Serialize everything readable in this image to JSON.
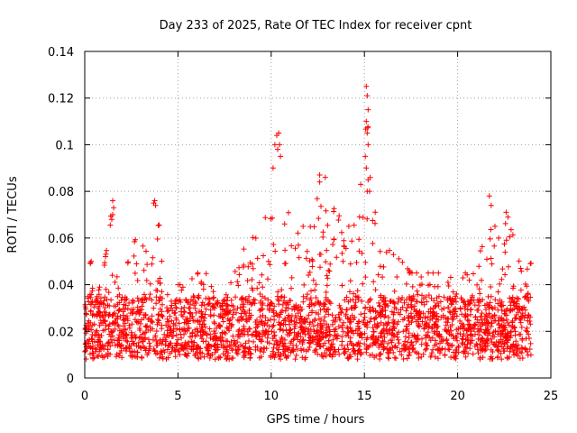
{
  "chart_data": {
    "type": "scatter",
    "title": "Day 233 of 2025, Rate Of TEC Index for receiver cpnt",
    "xlabel": "GPS time / hours",
    "ylabel": "ROTI / TECUs",
    "xlim": [
      0,
      25
    ],
    "ylim": [
      0,
      0.14
    ],
    "xticks": [
      0,
      5,
      10,
      15,
      20,
      25
    ],
    "xtick_labels": [
      "0",
      "5",
      "10",
      "15",
      "20",
      "25"
    ],
    "yticks": [
      0,
      0.02,
      0.04,
      0.06,
      0.08,
      0.1,
      0.12,
      0.14
    ],
    "ytick_labels": [
      "0",
      "0.02",
      "0.04",
      "0.06",
      "0.08",
      "0.1",
      "0.12",
      "0.14"
    ],
    "grid": true,
    "marker": "+",
    "color": "#ff0000",
    "series": [
      {
        "name": "ROTI",
        "x_range": [
          0,
          24
        ],
        "baseline_band": [
          0.008,
          0.035
        ],
        "envelope": [
          [
            0.0,
            0.03
          ],
          [
            0.3,
            0.05
          ],
          [
            0.5,
            0.03
          ],
          [
            1.0,
            0.045
          ],
          [
            1.4,
            0.07
          ],
          [
            1.6,
            0.045
          ],
          [
            2.0,
            0.04
          ],
          [
            2.5,
            0.055
          ],
          [
            3.0,
            0.065
          ],
          [
            3.5,
            0.05
          ],
          [
            3.8,
            0.075
          ],
          [
            4.2,
            0.055
          ],
          [
            4.5,
            0.04
          ],
          [
            5.0,
            0.04
          ],
          [
            5.5,
            0.04
          ],
          [
            6.0,
            0.045
          ],
          [
            6.5,
            0.045
          ],
          [
            7.0,
            0.035
          ],
          [
            7.3,
            0.03
          ],
          [
            7.8,
            0.04
          ],
          [
            8.5,
            0.055
          ],
          [
            9.0,
            0.06
          ],
          [
            9.5,
            0.065
          ],
          [
            10.0,
            0.075
          ],
          [
            10.3,
            0.1
          ],
          [
            10.6,
            0.075
          ],
          [
            11.0,
            0.07
          ],
          [
            11.5,
            0.065
          ],
          [
            12.0,
            0.065
          ],
          [
            12.5,
            0.085
          ],
          [
            13.0,
            0.08
          ],
          [
            13.5,
            0.07
          ],
          [
            14.0,
            0.07
          ],
          [
            14.5,
            0.065
          ],
          [
            14.8,
            0.08
          ],
          [
            15.1,
            0.125
          ],
          [
            15.4,
            0.08
          ],
          [
            15.8,
            0.06
          ],
          [
            16.3,
            0.055
          ],
          [
            17.0,
            0.05
          ],
          [
            17.5,
            0.045
          ],
          [
            18.0,
            0.045
          ],
          [
            18.5,
            0.045
          ],
          [
            19.0,
            0.045
          ],
          [
            19.5,
            0.045
          ],
          [
            20.0,
            0.045
          ],
          [
            20.5,
            0.045
          ],
          [
            21.0,
            0.05
          ],
          [
            21.5,
            0.06
          ],
          [
            21.8,
            0.078
          ],
          [
            22.1,
            0.07
          ],
          [
            22.5,
            0.065
          ],
          [
            22.8,
            0.07
          ],
          [
            23.1,
            0.055
          ],
          [
            23.5,
            0.045
          ],
          [
            24.0,
            0.05
          ]
        ],
        "highlighted_points": [
          [
            0.3,
            0.049
          ],
          [
            0.35,
            0.05
          ],
          [
            1.45,
            0.068
          ],
          [
            1.5,
            0.07
          ],
          [
            1.55,
            0.073
          ],
          [
            1.5,
            0.076
          ],
          [
            3.7,
            0.075
          ],
          [
            3.8,
            0.074
          ],
          [
            3.75,
            0.076
          ],
          [
            10.2,
            0.1
          ],
          [
            10.3,
            0.104
          ],
          [
            10.4,
            0.105
          ],
          [
            10.35,
            0.098
          ],
          [
            10.45,
            0.1
          ],
          [
            10.1,
            0.09
          ],
          [
            10.5,
            0.095
          ],
          [
            12.6,
            0.087
          ],
          [
            12.9,
            0.086
          ],
          [
            15.1,
            0.125
          ],
          [
            15.15,
            0.121
          ],
          [
            15.2,
            0.115
          ],
          [
            15.1,
            0.11
          ],
          [
            15.15,
            0.105
          ],
          [
            15.2,
            0.1
          ],
          [
            15.05,
            0.095
          ],
          [
            15.1,
            0.09
          ],
          [
            15.2,
            0.085
          ],
          [
            15.15,
            0.08
          ],
          [
            14.8,
            0.083
          ],
          [
            21.7,
            0.078
          ],
          [
            21.8,
            0.074
          ],
          [
            22.0,
            0.065
          ],
          [
            22.2,
            0.06
          ],
          [
            22.6,
            0.071
          ],
          [
            22.7,
            0.069
          ]
        ]
      }
    ]
  }
}
